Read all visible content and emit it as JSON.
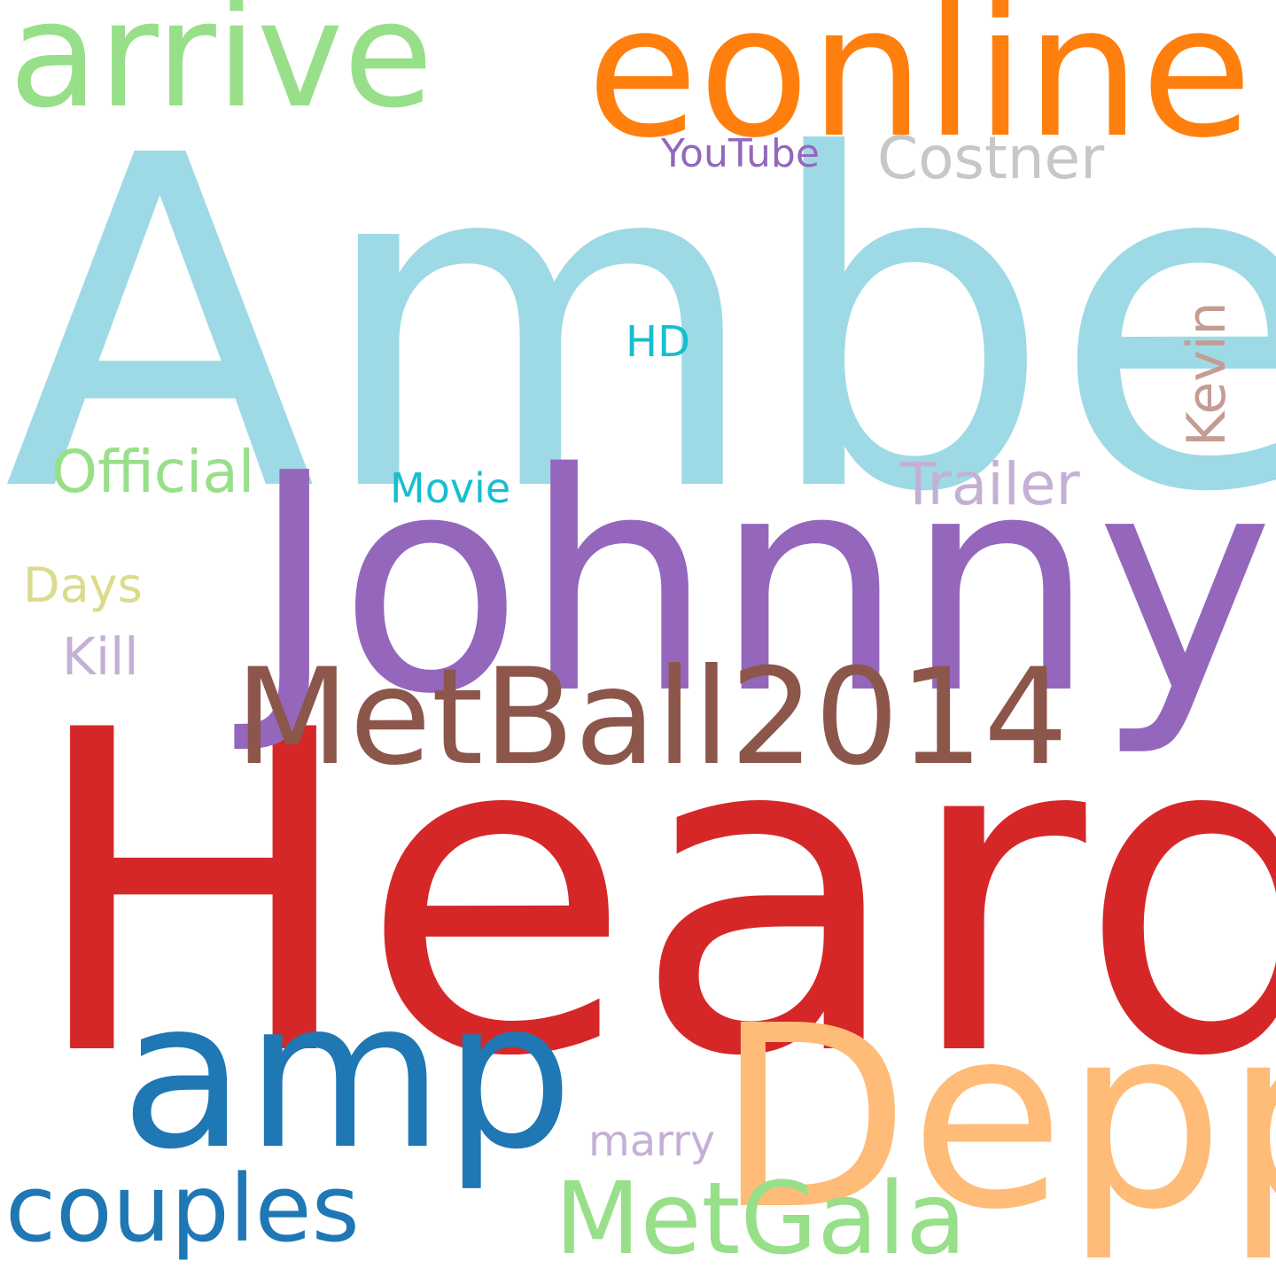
{
  "background": "#ffffff",
  "words": [
    {
      "id": "amber",
      "text": "Amber",
      "color": "#9edae5"
    },
    {
      "id": "heard",
      "text": "Heard",
      "color": "#d62728"
    },
    {
      "id": "johnny",
      "text": "Johnny",
      "color": "#9467bd"
    },
    {
      "id": "eonline",
      "text": "eonline",
      "color": "#ff7f0e"
    },
    {
      "id": "arrive",
      "text": "arrive",
      "color": "#98df8a"
    },
    {
      "id": "depp",
      "text": "Depp",
      "color": "#ffbb78"
    },
    {
      "id": "amp",
      "text": "amp",
      "color": "#1f77b4"
    },
    {
      "id": "metball",
      "text": "MetBall2014",
      "color": "#8c564b"
    },
    {
      "id": "metgala",
      "text": "MetGala",
      "color": "#98df8a"
    },
    {
      "id": "couples",
      "text": "couples",
      "color": "#1f77b4"
    },
    {
      "id": "costner",
      "text": "Costner",
      "color": "#c7c7c7"
    },
    {
      "id": "trailer",
      "text": "Trailer",
      "color": "#c5b0d5"
    },
    {
      "id": "official",
      "text": "Official",
      "color": "#98df8a"
    },
    {
      "id": "youtube",
      "text": "YouTube",
      "color": "#9467bd"
    },
    {
      "id": "kevin",
      "text": "Kevin",
      "color": "#c49c94"
    },
    {
      "id": "hd",
      "text": "HD",
      "color": "#17becf"
    },
    {
      "id": "movie",
      "text": "Movie",
      "color": "#17becf"
    },
    {
      "id": "days",
      "text": "Days",
      "color": "#dbdb8d"
    },
    {
      "id": "kill",
      "text": "Kill",
      "color": "#c5b0d5"
    },
    {
      "id": "marry",
      "text": "marry",
      "color": "#c5b0d5"
    }
  ]
}
